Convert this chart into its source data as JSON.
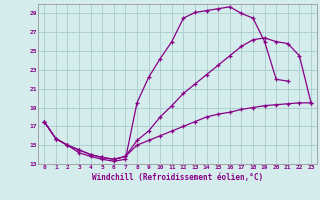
{
  "xlabel": "Windchill (Refroidissement éolien,°C)",
  "bg_color": "#d4ecec",
  "grid_color": "#aacccc",
  "line_color": "#880088",
  "xlim": [
    -0.5,
    23.5
  ],
  "ylim": [
    13,
    30
  ],
  "xticks": [
    0,
    1,
    2,
    3,
    4,
    5,
    6,
    7,
    8,
    9,
    10,
    11,
    12,
    13,
    14,
    15,
    16,
    17,
    18,
    19,
    20,
    21,
    22,
    23
  ],
  "yticks": [
    13,
    15,
    17,
    19,
    21,
    23,
    25,
    27,
    29
  ],
  "line1_x": [
    0,
    1,
    2,
    3,
    4,
    5,
    6,
    7,
    8,
    9,
    10,
    11,
    12,
    13,
    14,
    15,
    16,
    17,
    18,
    19,
    20,
    21
  ],
  "line1_y": [
    17.5,
    15.7,
    15.0,
    14.2,
    13.8,
    13.5,
    13.3,
    13.5,
    19.5,
    22.2,
    24.2,
    26.0,
    28.5,
    29.1,
    29.3,
    29.5,
    29.7,
    29.0,
    28.5,
    26.0,
    22.0,
    21.8
  ],
  "line2_x": [
    0,
    1,
    2,
    3,
    4,
    5,
    6,
    7,
    8,
    9,
    10,
    11,
    12,
    13,
    14,
    15,
    16,
    17,
    18,
    19,
    20,
    21,
    22,
    23
  ],
  "line2_y": [
    17.5,
    15.7,
    15.0,
    14.5,
    14.0,
    13.7,
    13.5,
    13.8,
    15.5,
    16.5,
    18.0,
    19.2,
    20.5,
    21.5,
    22.5,
    23.5,
    24.5,
    25.5,
    26.2,
    26.4,
    26.0,
    25.8,
    24.5,
    19.5
  ],
  "line3_x": [
    0,
    1,
    2,
    3,
    4,
    5,
    6,
    7,
    8,
    9,
    10,
    11,
    12,
    13,
    14,
    15,
    16,
    17,
    18,
    19,
    20,
    21,
    22,
    23
  ],
  "line3_y": [
    17.5,
    15.7,
    15.0,
    14.5,
    14.0,
    13.7,
    13.5,
    13.8,
    15.0,
    15.5,
    16.0,
    16.5,
    17.0,
    17.5,
    18.0,
    18.3,
    18.5,
    18.8,
    19.0,
    19.2,
    19.3,
    19.4,
    19.5,
    19.5
  ]
}
